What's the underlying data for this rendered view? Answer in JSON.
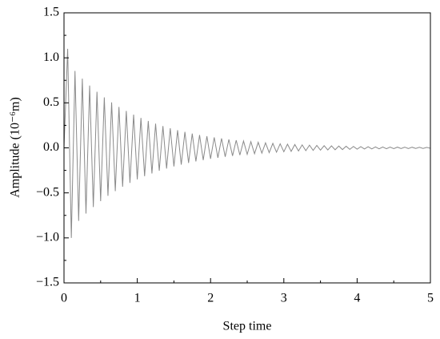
{
  "chart_data": {
    "type": "line",
    "xlabel": "Step time",
    "ylabel": "Amplitude (10⁻⁶m)",
    "xlim": [
      0,
      5
    ],
    "ylim": [
      -1.5,
      1.5
    ],
    "xticks": [
      0,
      1,
      2,
      3,
      4,
      5
    ],
    "yticks": [
      {
        "value": -1.5,
        "label": "−1.5"
      },
      {
        "value": -1.0,
        "label": "−1.0"
      },
      {
        "value": -0.5,
        "label": "−0.5"
      },
      {
        "value": 0,
        "label": "0.0"
      },
      0.5,
      {
        "value": 1.0,
        "label": "1.0"
      },
      1.5
    ],
    "xminorticks": [
      0.5,
      1.5,
      2.5,
      3.5,
      4.5
    ],
    "yminorticks": [
      -1.25,
      -0.75,
      -0.25,
      0.25,
      0.75,
      1.25
    ],
    "series": [
      {
        "color": "#8a8a8a",
        "x": [
          0,
          0.05,
          0.1,
          0.15,
          0.2,
          0.25,
          0.3,
          0.35,
          0.4,
          0.45,
          0.5,
          0.55,
          0.6,
          0.65,
          0.7,
          0.75,
          0.8,
          0.85,
          0.9,
          0.95,
          1,
          1.05,
          1.1,
          1.15,
          1.2,
          1.25,
          1.3,
          1.35,
          1.4,
          1.45,
          1.5,
          1.55,
          1.6,
          1.65,
          1.7,
          1.75,
          1.8,
          1.85,
          1.9,
          1.95,
          2,
          2.05,
          2.1,
          2.15,
          2.2,
          2.25,
          2.3,
          2.35,
          2.4,
          2.45,
          2.5,
          2.55,
          2.6,
          2.65,
          2.7,
          2.75,
          2.8,
          2.85,
          2.9,
          2.95,
          3,
          3.05,
          3.1,
          3.15,
          3.2,
          3.25,
          3.3,
          3.35,
          3.4,
          3.45,
          3.5,
          3.55,
          3.6,
          3.65,
          3.7,
          3.75,
          3.8,
          3.85,
          3.9,
          3.95,
          4,
          4.05,
          4.1,
          4.15,
          4.2,
          4.25,
          4.3,
          4.35,
          4.4,
          4.45,
          4.5,
          4.55,
          4.6,
          4.65,
          4.7,
          4.75,
          4.8,
          4.85,
          4.9,
          4.95,
          5
        ],
        "values": [
          0,
          1.1,
          -1.0,
          0.854,
          -0.811,
          0.769,
          -0.73,
          0.692,
          -0.657,
          0.623,
          -0.592,
          0.561,
          -0.533,
          0.505,
          -0.48,
          0.455,
          -0.432,
          0.41,
          -0.389,
          0.369,
          -0.35,
          0.332,
          -0.315,
          0.299,
          -0.284,
          0.269,
          -0.255,
          0.242,
          -0.23,
          0.218,
          -0.207,
          0.196,
          -0.186,
          0.177,
          -0.168,
          0.159,
          -0.151,
          0.143,
          -0.136,
          0.129,
          -0.122,
          0.116,
          -0.11,
          0.105,
          -0.099,
          0.094,
          -0.089,
          0.085,
          -0.08,
          0.076,
          -0.072,
          0.069,
          -0.065,
          0.062,
          -0.059,
          0.056,
          -0.053,
          0.05,
          -0.048,
          0.045,
          -0.043,
          0.041,
          -0.039,
          0.037,
          -0.035,
          0.033,
          -0.031,
          0.03,
          -0.028,
          0.027,
          -0.025,
          0.024,
          -0.023,
          0.022,
          -0.021,
          0.02,
          -0.019,
          0.018,
          -0.017,
          0.016,
          -0.015,
          0.014,
          -0.013,
          0.013,
          -0.012,
          0.011,
          -0.011,
          0.01,
          -0.01,
          0.009,
          -0.009,
          0.008,
          -0.008,
          0.007,
          -0.007,
          0.007,
          -0.006,
          0.006,
          -0.006,
          0.005,
          -0.005
        ]
      }
    ]
  }
}
